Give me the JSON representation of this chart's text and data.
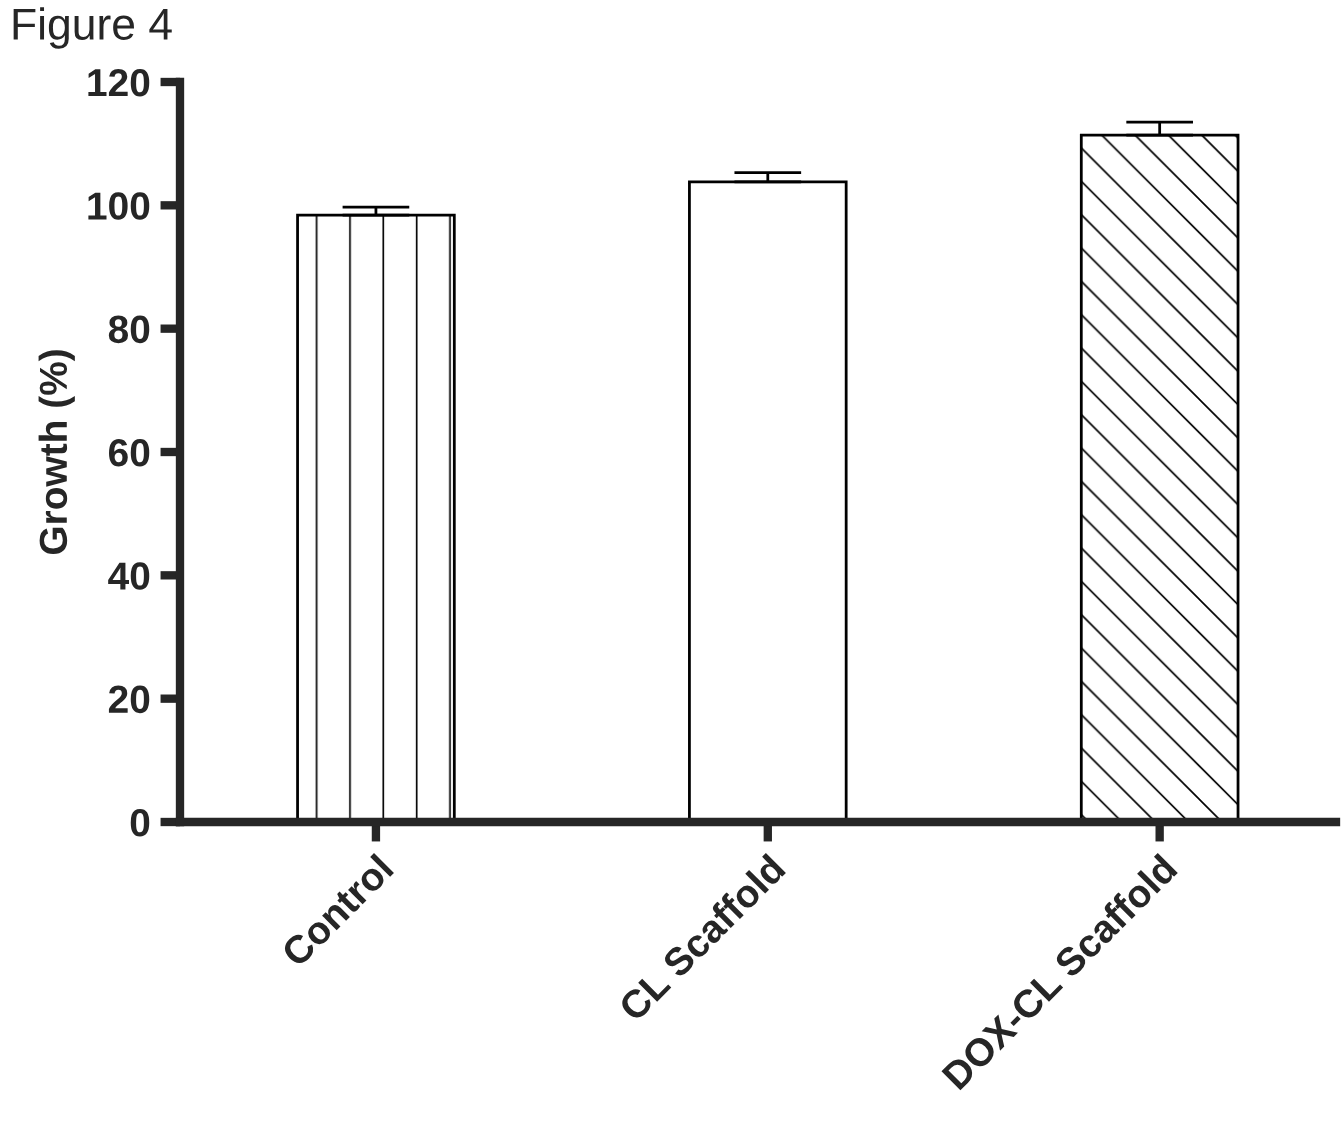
{
  "chart_data": {
    "type": "bar",
    "title": "Figure 4",
    "ylabel": "Growth (%)",
    "categories": [
      "Control",
      "CL Scaffold",
      "DOX-CL Scaffold"
    ],
    "values": [
      98.4,
      103.8,
      111.4
    ],
    "errors": [
      1.3,
      1.5,
      2.1
    ],
    "colors": [
      "#ffffff",
      "#ffffff",
      "#ffffff"
    ],
    "ylim": [
      0,
      120
    ],
    "yticks": [
      0,
      20,
      40,
      60,
      80,
      100,
      120
    ],
    "grid": false,
    "legend": false
  }
}
